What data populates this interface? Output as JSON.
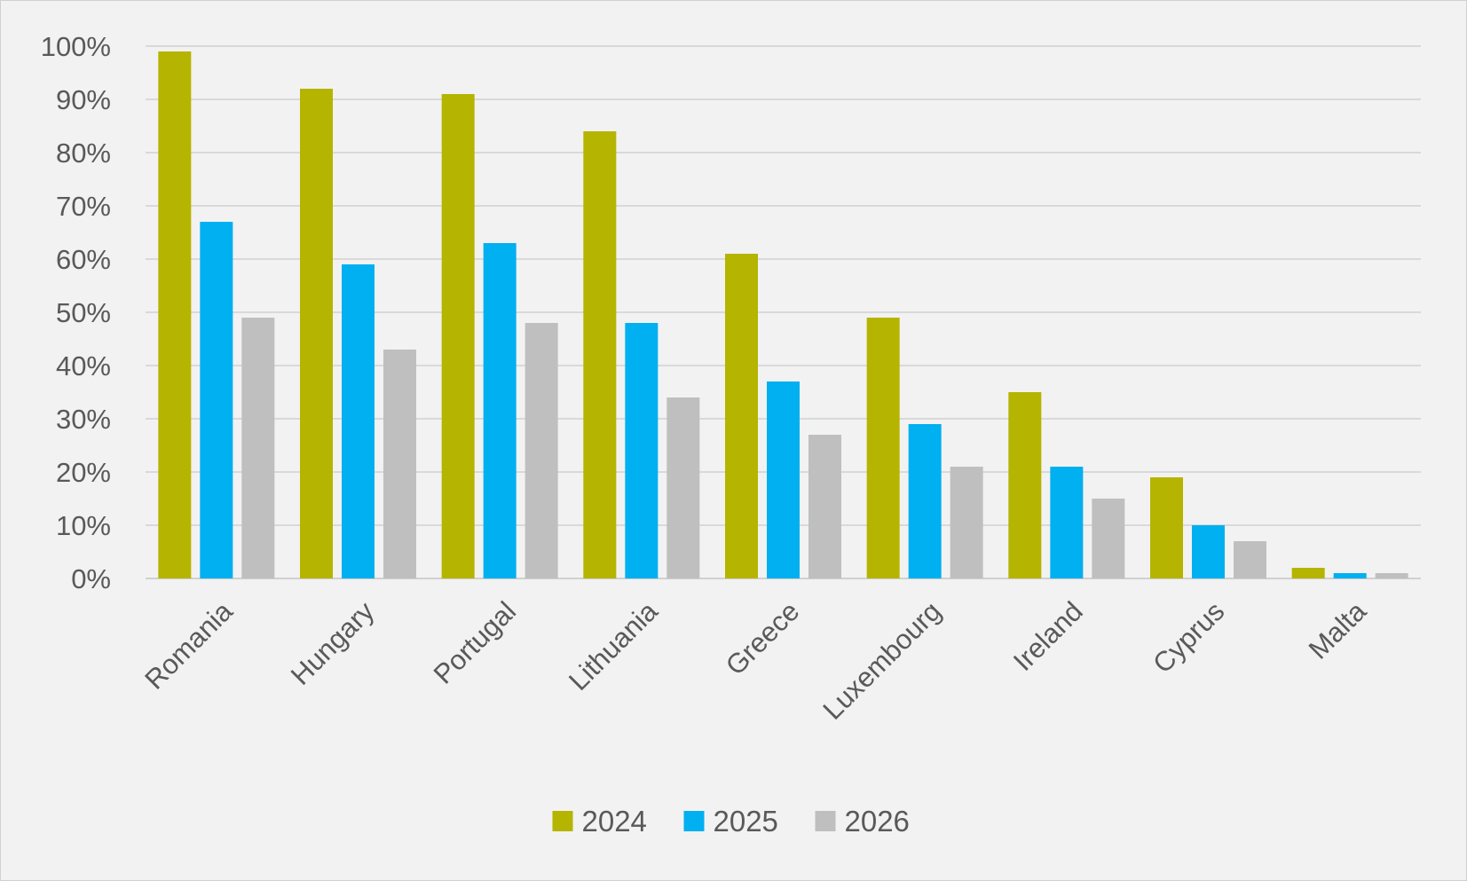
{
  "chart_data": {
    "type": "bar",
    "title": "",
    "xlabel": "",
    "ylabel": "",
    "categories": [
      "Romania",
      "Hungary",
      "Portugal",
      "Lithuania",
      "Greece",
      "Luxembourg",
      "Ireland",
      "Cyprus",
      "Malta"
    ],
    "series": [
      {
        "name": "2024",
        "color": "#b5b400",
        "values": [
          99,
          92,
          91,
          84,
          61,
          49,
          35,
          19,
          2
        ]
      },
      {
        "name": "2025",
        "color": "#00b0f0",
        "values": [
          67,
          59,
          63,
          48,
          37,
          29,
          21,
          10,
          1
        ]
      },
      {
        "name": "2026",
        "color": "#bfbfbf",
        "values": [
          49,
          43,
          48,
          34,
          27,
          21,
          15,
          7,
          1
        ]
      }
    ],
    "ylim": [
      0,
      100
    ],
    "y_tick_step": 10,
    "y_tick_suffix": "%",
    "grid": true,
    "legend_position": "bottom"
  }
}
